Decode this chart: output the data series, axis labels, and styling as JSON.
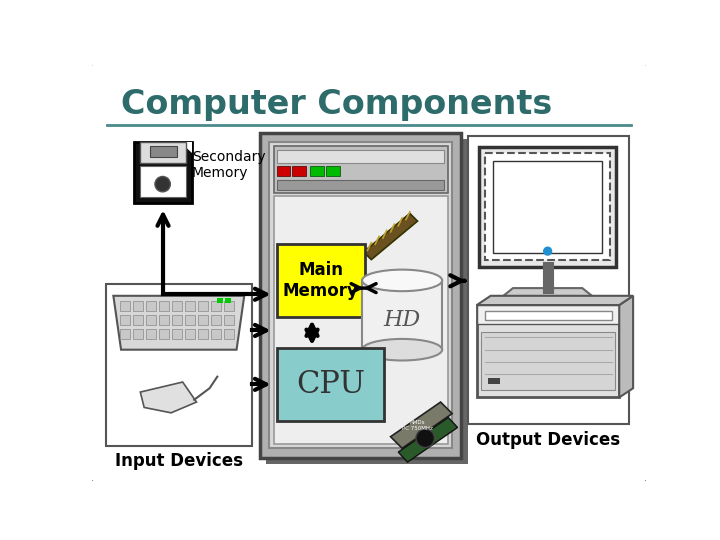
{
  "title": "Computer Components",
  "title_color": "#2e6b6b",
  "title_fontsize": 24,
  "bg_color": "#ffffff",
  "outer_border_color": "#4a8a8a",
  "main_memory_label": "Main\nMemory",
  "cpu_label": "CPU",
  "hd_label": "HD",
  "secondary_memory_label": "Secondary\nMemory",
  "input_devices_label": "Input Devices",
  "output_devices_label": "Output Devices",
  "main_memory_color": "#ffff00",
  "cpu_color": "#88cccc",
  "arrow_color": "#000000",
  "title_underline_color": "#4a8a8a",
  "tower_outer_color": "#888888",
  "tower_face_color": "#aaaaaa",
  "tower_inner_color": "#cccccc",
  "tower_panel_color": "#999999"
}
